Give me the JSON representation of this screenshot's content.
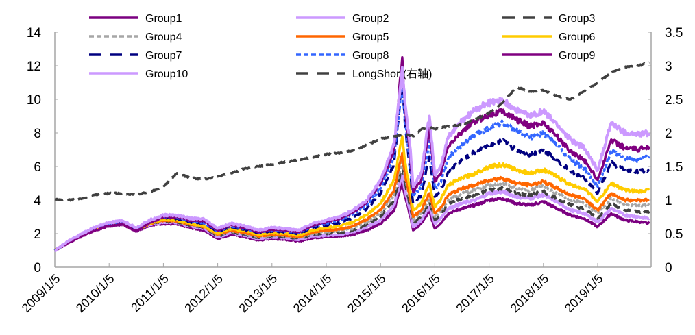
{
  "chart_data": {
    "type": "line",
    "title": "",
    "xlabel": "",
    "ylabel_left": "",
    "ylabel_right": "",
    "x_range": [
      2009.0,
      2019.95
    ],
    "x_ticks": [
      {
        "label": "2009/1/5",
        "value": 2009.0
      },
      {
        "label": "2010/1/5",
        "value": 2010.0
      },
      {
        "label": "2011/1/5",
        "value": 2011.0
      },
      {
        "label": "2012/1/5",
        "value": 2012.0
      },
      {
        "label": "2013/1/5",
        "value": 2013.0
      },
      {
        "label": "2014/1/5",
        "value": 2014.0
      },
      {
        "label": "2015/1/5",
        "value": 2015.0
      },
      {
        "label": "2016/1/5",
        "value": 2016.0
      },
      {
        "label": "2017/1/5",
        "value": 2017.0
      },
      {
        "label": "2018/1/5",
        "value": 2018.0
      },
      {
        "label": "2019/1/5",
        "value": 2019.0
      }
    ],
    "y_left": {
      "range": [
        0,
        14
      ],
      "ticks": [
        "0",
        "2",
        "4",
        "6",
        "8",
        "10",
        "12",
        "14"
      ]
    },
    "y_right": {
      "range": [
        0,
        3.5
      ],
      "ticks": [
        "0",
        "0.5",
        "1",
        "1.5",
        "2",
        "2.5",
        "3",
        "3.5"
      ]
    },
    "grid": false,
    "legend_position": "top",
    "x": [
      2009.0,
      2009.25,
      2009.5,
      2009.75,
      2010.0,
      2010.25,
      2010.5,
      2010.75,
      2011.0,
      2011.25,
      2011.5,
      2011.75,
      2012.0,
      2012.25,
      2012.5,
      2012.75,
      2013.0,
      2013.25,
      2013.5,
      2013.75,
      2014.0,
      2014.25,
      2014.5,
      2014.75,
      2015.0,
      2015.25,
      2015.4,
      2015.45,
      2015.55,
      2015.6,
      2015.75,
      2015.9,
      2016.0,
      2016.1,
      2016.25,
      2016.5,
      2016.75,
      2017.0,
      2017.25,
      2017.5,
      2017.75,
      2018.0,
      2018.25,
      2018.5,
      2018.75,
      2019.0,
      2019.25,
      2019.5,
      2019.75,
      2019.95
    ],
    "series": [
      {
        "name": "Group1",
        "axis": "left",
        "color": "#7b0080",
        "dash": "solid",
        "values": [
          1.0,
          1.5,
          1.9,
          2.3,
          2.5,
          2.55,
          2.15,
          2.5,
          2.6,
          2.55,
          2.35,
          2.2,
          1.7,
          1.95,
          1.8,
          1.6,
          1.7,
          1.65,
          1.55,
          1.75,
          1.8,
          1.85,
          1.95,
          2.2,
          2.6,
          3.4,
          5.0,
          4.2,
          3.0,
          2.2,
          2.6,
          3.3,
          2.3,
          2.6,
          3.2,
          3.5,
          3.7,
          4.0,
          4.1,
          3.8,
          3.7,
          3.9,
          3.5,
          3.1,
          2.9,
          2.4,
          3.2,
          2.8,
          2.7,
          2.6
        ]
      },
      {
        "name": "Group2",
        "axis": "left",
        "color": "#cc99ff",
        "dash": "solid",
        "values": [
          1.0,
          1.5,
          1.9,
          2.3,
          2.5,
          2.6,
          2.2,
          2.55,
          2.7,
          2.65,
          2.45,
          2.3,
          1.8,
          2.05,
          1.9,
          1.7,
          1.8,
          1.75,
          1.65,
          1.85,
          1.9,
          1.95,
          2.1,
          2.4,
          2.8,
          3.7,
          5.5,
          4.6,
          3.3,
          2.4,
          2.8,
          3.6,
          2.6,
          2.9,
          3.5,
          3.8,
          4.0,
          4.4,
          4.5,
          4.2,
          4.1,
          4.3,
          3.9,
          3.4,
          3.2,
          2.7,
          3.5,
          3.1,
          3.0,
          2.9
        ]
      },
      {
        "name": "Group3",
        "axis": "left",
        "color": "#404040",
        "dash": "longdash",
        "values": [
          1.0,
          1.5,
          1.95,
          2.3,
          2.5,
          2.6,
          2.2,
          2.6,
          2.75,
          2.7,
          2.5,
          2.35,
          1.85,
          2.1,
          1.95,
          1.75,
          1.85,
          1.8,
          1.7,
          1.95,
          2.0,
          2.05,
          2.2,
          2.55,
          3.0,
          4.0,
          6.0,
          5.0,
          3.6,
          2.6,
          3.0,
          3.9,
          2.8,
          3.1,
          3.8,
          4.1,
          4.3,
          4.6,
          4.7,
          4.4,
          4.3,
          4.5,
          4.1,
          3.7,
          3.5,
          2.9,
          3.8,
          3.4,
          3.3,
          3.3
        ]
      },
      {
        "name": "Group4",
        "axis": "left",
        "color": "#a6a6a6",
        "dash": "shortdash",
        "values": [
          1.0,
          1.5,
          1.95,
          2.35,
          2.55,
          2.65,
          2.25,
          2.6,
          2.8,
          2.75,
          2.55,
          2.4,
          1.9,
          2.15,
          2.0,
          1.8,
          1.9,
          1.85,
          1.75,
          2.0,
          2.1,
          2.15,
          2.3,
          2.7,
          3.2,
          4.3,
          6.4,
          5.3,
          3.8,
          2.8,
          3.2,
          4.1,
          3.0,
          3.3,
          4.0,
          4.4,
          4.6,
          4.9,
          5.0,
          4.7,
          4.6,
          4.8,
          4.4,
          4.0,
          3.8,
          3.2,
          4.1,
          3.7,
          3.7,
          3.7
        ]
      },
      {
        "name": "Group5",
        "axis": "left",
        "color": "#ff6600",
        "dash": "solid",
        "values": [
          1.0,
          1.5,
          1.9,
          2.3,
          2.5,
          2.6,
          2.2,
          2.6,
          2.8,
          2.75,
          2.55,
          2.4,
          1.95,
          2.2,
          2.05,
          1.85,
          1.95,
          1.9,
          1.8,
          2.1,
          2.2,
          2.25,
          2.45,
          2.85,
          3.4,
          4.6,
          6.8,
          5.6,
          4.0,
          3.0,
          3.4,
          4.4,
          3.2,
          3.5,
          4.3,
          4.7,
          4.9,
          5.2,
          5.3,
          5.0,
          4.9,
          5.1,
          4.7,
          4.3,
          4.1,
          3.4,
          4.4,
          4.0,
          4.0,
          4.0
        ]
      },
      {
        "name": "Group6",
        "axis": "left",
        "color": "#ffcc00",
        "dash": "solid",
        "values": [
          1.0,
          1.5,
          1.9,
          2.3,
          2.5,
          2.6,
          2.2,
          2.6,
          2.85,
          2.8,
          2.6,
          2.45,
          2.0,
          2.3,
          2.15,
          1.95,
          2.05,
          2.0,
          1.9,
          2.2,
          2.35,
          2.45,
          2.7,
          3.1,
          3.8,
          5.2,
          7.8,
          6.3,
          4.5,
          3.4,
          3.8,
          5.0,
          3.6,
          4.0,
          4.9,
          5.3,
          5.6,
          6.0,
          6.1,
          5.8,
          5.6,
          5.8,
          5.4,
          4.9,
          4.7,
          3.9,
          5.0,
          4.6,
          4.5,
          4.6
        ]
      },
      {
        "name": "Group7",
        "axis": "left",
        "color": "#000080",
        "dash": "longdash",
        "values": [
          1.0,
          1.5,
          1.95,
          2.35,
          2.55,
          2.65,
          2.25,
          2.7,
          2.95,
          2.9,
          2.7,
          2.6,
          2.1,
          2.4,
          2.25,
          2.05,
          2.15,
          2.1,
          2.0,
          2.35,
          2.5,
          2.65,
          2.95,
          3.5,
          4.4,
          6.2,
          11.2,
          8.5,
          5.5,
          3.8,
          4.3,
          6.6,
          4.2,
          4.5,
          5.7,
          6.4,
          6.9,
          7.3,
          7.5,
          7.0,
          6.7,
          7.0,
          6.4,
          5.7,
          5.3,
          4.4,
          6.2,
          5.8,
          5.7,
          5.8
        ]
      },
      {
        "name": "Group8",
        "axis": "left",
        "color": "#3366ff",
        "dash": "shortdash",
        "values": [
          1.0,
          1.5,
          1.95,
          2.35,
          2.55,
          2.65,
          2.3,
          2.75,
          3.0,
          2.95,
          2.75,
          2.65,
          2.15,
          2.45,
          2.3,
          2.1,
          2.2,
          2.15,
          2.05,
          2.45,
          2.6,
          2.8,
          3.2,
          3.7,
          4.7,
          6.6,
          11.0,
          8.7,
          6.0,
          4.2,
          4.8,
          7.5,
          4.7,
          5.0,
          6.5,
          7.3,
          7.9,
          8.3,
          8.6,
          8.1,
          7.7,
          8.0,
          7.3,
          6.4,
          5.9,
          4.8,
          6.9,
          6.5,
          6.4,
          6.6
        ]
      },
      {
        "name": "Group9",
        "axis": "left",
        "color": "#800080",
        "dash": "solid",
        "values": [
          1.0,
          1.45,
          1.85,
          2.2,
          2.45,
          2.55,
          2.15,
          2.65,
          3.0,
          3.0,
          2.8,
          2.75,
          2.2,
          2.5,
          2.35,
          2.1,
          2.25,
          2.2,
          2.1,
          2.5,
          2.7,
          2.9,
          3.3,
          3.9,
          5.0,
          7.0,
          12.5,
          9.5,
          6.5,
          4.5,
          5.2,
          8.3,
          5.1,
          5.5,
          7.2,
          8.1,
          8.7,
          9.1,
          9.3,
          8.8,
          8.4,
          8.6,
          7.8,
          6.9,
          6.4,
          5.2,
          7.6,
          7.1,
          7.0,
          7.2
        ]
      },
      {
        "name": "Group10",
        "axis": "left",
        "color": "#cc99ff",
        "dash": "solid",
        "values": [
          1.0,
          1.55,
          2.0,
          2.4,
          2.65,
          2.75,
          2.35,
          2.8,
          3.1,
          3.1,
          2.9,
          2.85,
          2.3,
          2.6,
          2.45,
          2.2,
          2.35,
          2.3,
          2.2,
          2.6,
          2.8,
          3.0,
          3.4,
          4.0,
          5.2,
          7.3,
          11.9,
          9.8,
          7.0,
          4.8,
          5.6,
          9.0,
          5.5,
          5.9,
          7.8,
          8.7,
          9.4,
          9.8,
          9.9,
          9.4,
          9.0,
          9.3,
          8.5,
          7.6,
          7.1,
          5.8,
          8.6,
          8.0,
          7.9,
          8.0
        ]
      },
      {
        "name": "LongShort(右轴)",
        "axis": "right",
        "color": "#404040",
        "dash": "longdash",
        "values": [
          1.01,
          1.0,
          1.02,
          1.08,
          1.1,
          1.1,
          1.08,
          1.12,
          1.2,
          1.4,
          1.33,
          1.31,
          1.35,
          1.4,
          1.47,
          1.5,
          1.53,
          1.57,
          1.6,
          1.64,
          1.68,
          1.7,
          1.74,
          1.82,
          1.91,
          1.95,
          1.97,
          1.98,
          1.96,
          1.95,
          2.05,
          2.08,
          2.06,
          2.08,
          2.1,
          2.12,
          2.2,
          2.3,
          2.45,
          2.68,
          2.62,
          2.63,
          2.55,
          2.5,
          2.62,
          2.75,
          2.9,
          2.98,
          3.0,
          3.05
        ]
      }
    ]
  }
}
